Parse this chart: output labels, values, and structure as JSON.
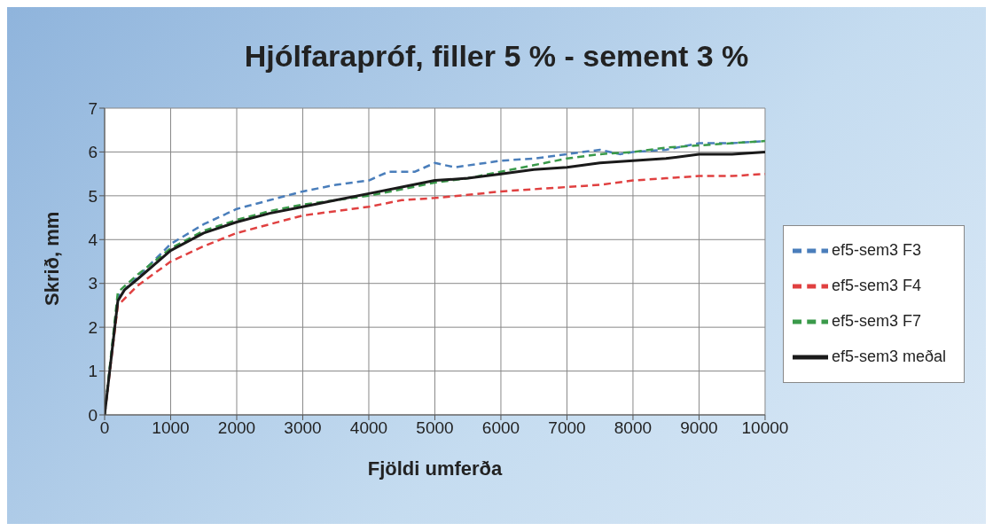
{
  "chart_data": {
    "type": "line",
    "title": "Hjólfarapróf, filler 5 % - sement 3 %",
    "xlabel": "Fjöldi umferða",
    "ylabel": "Skrið, mm",
    "xlim": [
      0,
      10000
    ],
    "xticks": [
      0,
      1000,
      2000,
      3000,
      4000,
      5000,
      6000,
      7000,
      8000,
      9000,
      10000
    ],
    "ylim": [
      0,
      7
    ],
    "yticks": [
      0,
      1,
      2,
      3,
      4,
      5,
      6,
      7
    ],
    "grid": true,
    "legend": "right",
    "marker": "none",
    "series": [
      {
        "name": "ef5-sem3 F3",
        "color": "#4a7ebb",
        "line_style": "dashed",
        "x": [
          0,
          200,
          500,
          1000,
          1500,
          2000,
          2500,
          3000,
          3500,
          4000,
          4300,
          4700,
          5000,
          5300,
          6000,
          6500,
          7000,
          7500,
          7800,
          8000,
          8500,
          9000,
          9500,
          10000
        ],
        "values": [
          0,
          2.7,
          3.15,
          3.9,
          4.35,
          4.7,
          4.9,
          5.1,
          5.25,
          5.35,
          5.55,
          5.55,
          5.75,
          5.65,
          5.8,
          5.85,
          5.95,
          6.05,
          5.95,
          6.0,
          6.05,
          6.2,
          6.2,
          6.25
        ]
      },
      {
        "name": "ef5-sem3 F4",
        "color": "#e04040",
        "line_style": "dashed",
        "x": [
          0,
          200,
          500,
          1000,
          1500,
          2000,
          2500,
          3000,
          3500,
          4000,
          4500,
          5000,
          5500,
          6000,
          6500,
          7000,
          7500,
          8000,
          8500,
          9000,
          9500,
          10000
        ],
        "values": [
          0,
          2.5,
          2.95,
          3.5,
          3.85,
          4.15,
          4.35,
          4.55,
          4.65,
          4.75,
          4.9,
          4.95,
          5.02,
          5.1,
          5.15,
          5.2,
          5.25,
          5.35,
          5.4,
          5.45,
          5.45,
          5.5
        ]
      },
      {
        "name": "ef5-sem3 F7",
        "color": "#3a9a4a",
        "line_style": "dashed",
        "x": [
          0,
          200,
          500,
          1000,
          1500,
          2000,
          2500,
          3000,
          3500,
          4000,
          4500,
          5000,
          5500,
          6000,
          6500,
          7000,
          7500,
          8000,
          8500,
          9000,
          9500,
          10000
        ],
        "values": [
          0,
          2.8,
          3.2,
          3.8,
          4.2,
          4.45,
          4.65,
          4.8,
          4.9,
          5.0,
          5.15,
          5.3,
          5.4,
          5.55,
          5.7,
          5.85,
          5.95,
          6.0,
          6.1,
          6.15,
          6.2,
          6.25
        ]
      },
      {
        "name": "ef5-sem3 meðal",
        "color": "#1a1a1a",
        "line_style": "solid",
        "x": [
          0,
          200,
          300,
          500,
          1000,
          1500,
          2000,
          2500,
          3000,
          3500,
          4000,
          4500,
          5000,
          5500,
          6000,
          6500,
          7000,
          7500,
          8000,
          8500,
          9000,
          9500,
          10000
        ],
        "values": [
          0,
          2.6,
          2.85,
          3.1,
          3.75,
          4.15,
          4.4,
          4.6,
          4.75,
          4.9,
          5.05,
          5.2,
          5.35,
          5.4,
          5.5,
          5.6,
          5.65,
          5.75,
          5.8,
          5.85,
          5.95,
          5.95,
          6.0
        ]
      }
    ]
  }
}
